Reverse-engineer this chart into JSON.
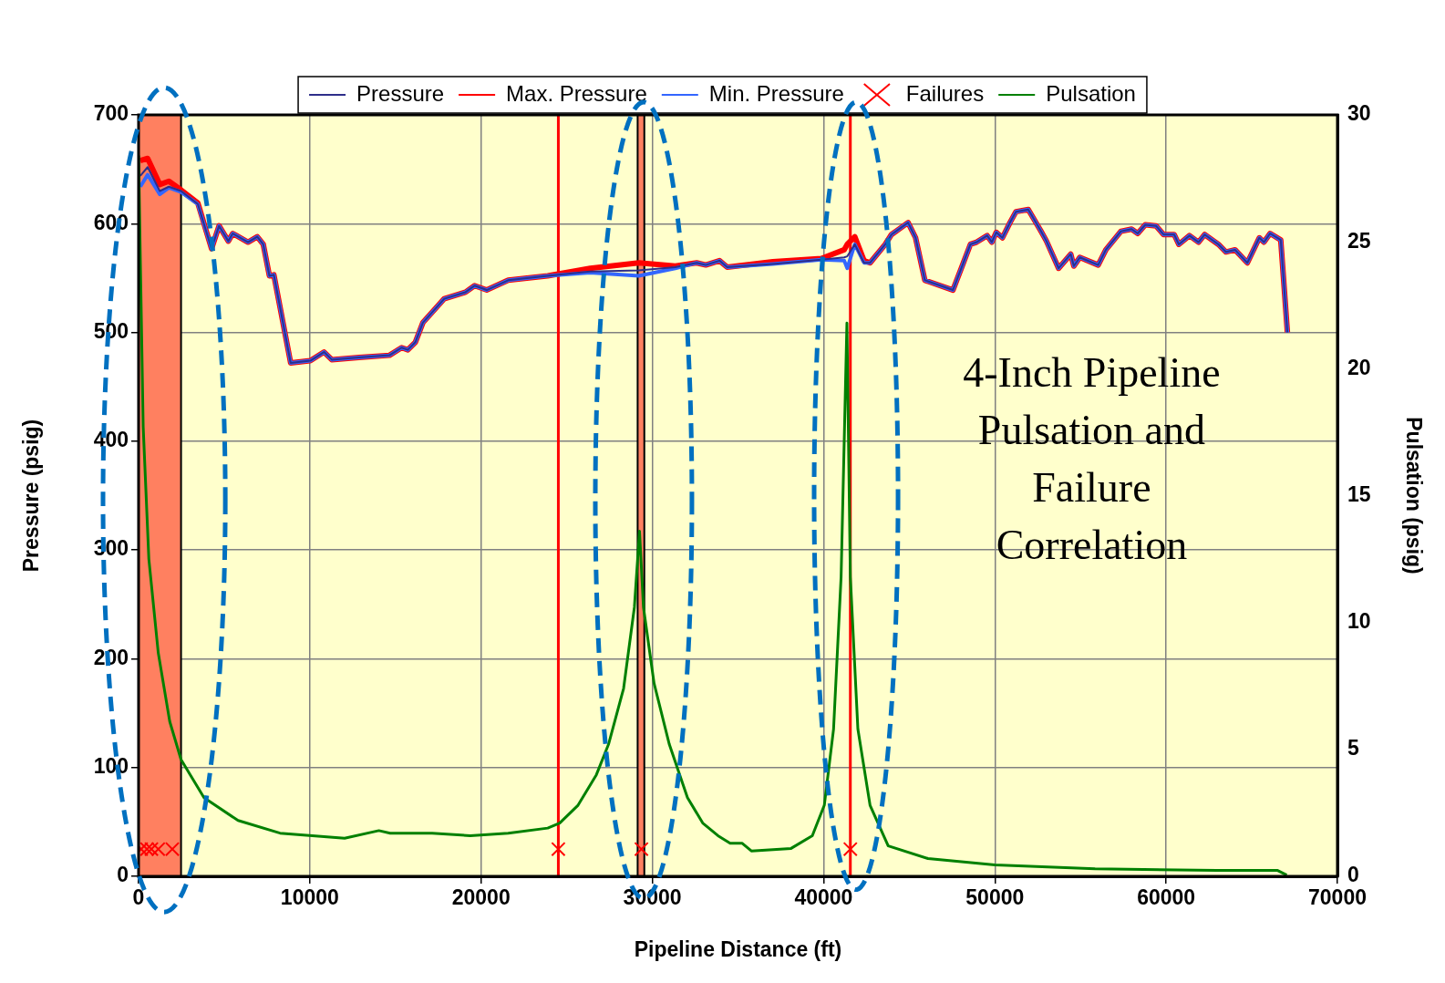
{
  "chart_data": {
    "type": "line",
    "xlabel": "Pipeline Distance (ft)",
    "ylabel": "Pressure (psig)",
    "y2label": "Pulsation (psig)",
    "annotations": [
      "4-Inch Pipeline Pulsation and Failure Correlation"
    ],
    "xlim": [
      0,
      70000
    ],
    "xticks": [
      0,
      10000,
      20000,
      30000,
      40000,
      50000,
      60000,
      70000
    ],
    "ylim": [
      0,
      700
    ],
    "yticks": [
      0,
      100,
      200,
      300,
      400,
      500,
      600,
      700
    ],
    "y2lim": [
      0,
      30
    ],
    "y2ticks": [
      0,
      5,
      10,
      15,
      20,
      25,
      30
    ],
    "grid": true,
    "legend": "top",
    "marker": "none",
    "x": [
      100,
      530,
      1240,
      1770,
      2480,
      3460,
      4260,
      4700,
      5240,
      5500,
      6390,
      6930,
      7280,
      7640,
      7900,
      8880,
      10030,
      10830,
      11280,
      12870,
      14650,
      15360,
      15720,
      16160,
      16600,
      17850,
      19090,
      19620,
      20330,
      21580,
      23890,
      26370,
      29210,
      31340,
      32590,
      33120,
      33920,
      34370,
      37030,
      39870,
      41200,
      41380,
      41820,
      42360,
      42710,
      43600,
      43960,
      44930,
      45370,
      45910,
      47550,
      48040,
      48570,
      48930,
      49550,
      49820,
      50080,
      50440,
      50880,
      51230,
      51950,
      52660,
      53010,
      53720,
      54430,
      54610,
      54960,
      56030,
      56480,
      57360,
      57980,
      58340,
      58780,
      59410,
      59850,
      60470,
      60740,
      61360,
      61890,
      62250,
      63050,
      63490,
      64020,
      64740,
      65440,
      65710,
      66070,
      66690,
      67080
    ],
    "bands": [
      {
        "axis": "x",
        "from": 0,
        "to": 2480,
        "color": "#ff8060"
      },
      {
        "axis": "x",
        "from": 29140,
        "to": 29530,
        "color": "#ff8060"
      }
    ],
    "ref_lines": [
      {
        "axis": "x",
        "value": 24510,
        "color": "#ff0000"
      },
      {
        "axis": "x",
        "value": 41560,
        "color": "#ff0000"
      }
    ],
    "series": [
      {
        "name": "Pressure",
        "color": "#2e2e8a",
        "values": [
          644,
          652,
          630,
          634,
          630,
          618,
          577,
          598,
          584,
          591,
          583,
          588,
          581,
          552,
          553,
          472,
          474,
          482,
          475,
          477,
          479,
          486,
          484,
          491,
          509,
          531,
          537,
          543,
          539,
          548,
          552,
          556,
          557,
          560,
          564,
          562,
          566,
          560,
          563,
          567,
          569,
          570,
          581,
          564,
          564,
          581,
          590,
          601,
          587,
          548,
          539,
          559,
          581,
          583,
          589,
          583,
          592,
          587,
          601,
          611,
          613,
          594,
          584,
          559,
          572,
          561,
          569,
          562,
          576,
          593,
          595,
          591,
          599,
          598,
          590,
          590,
          581,
          589,
          583,
          590,
          581,
          574,
          576,
          564,
          587,
          583,
          591,
          585,
          500
        ]
      },
      {
        "name": "Max. Pressure",
        "color": "#ff0000",
        "values": [
          658,
          660,
          636,
          639,
          631,
          619,
          577,
          598,
          584,
          591,
          583,
          588,
          581,
          552,
          553,
          472,
          474,
          482,
          475,
          477,
          479,
          486,
          484,
          491,
          509,
          531,
          537,
          543,
          539,
          548,
          552,
          559,
          564,
          561,
          564,
          562,
          566,
          560,
          565,
          568,
          576,
          581,
          588,
          566,
          564,
          581,
          590,
          601,
          587,
          548,
          539,
          559,
          581,
          583,
          589,
          583,
          592,
          587,
          601,
          611,
          613,
          594,
          584,
          559,
          572,
          561,
          569,
          562,
          576,
          593,
          595,
          591,
          599,
          598,
          590,
          590,
          581,
          589,
          583,
          590,
          581,
          574,
          576,
          564,
          587,
          583,
          591,
          585,
          500
        ]
      },
      {
        "name": "Min. Pressure",
        "color": "#3366ff",
        "values": [
          634,
          645,
          627,
          633,
          629,
          618,
          577,
          598,
          584,
          591,
          583,
          588,
          581,
          552,
          553,
          472,
          474,
          482,
          475,
          477,
          479,
          486,
          484,
          491,
          509,
          531,
          537,
          543,
          539,
          548,
          552,
          555,
          552,
          559,
          564,
          562,
          566,
          560,
          563,
          567,
          566,
          559,
          581,
          564,
          564,
          581,
          590,
          601,
          587,
          548,
          539,
          559,
          581,
          583,
          589,
          583,
          592,
          587,
          601,
          611,
          613,
          594,
          584,
          559,
          572,
          561,
          569,
          562,
          576,
          593,
          595,
          591,
          599,
          598,
          590,
          590,
          581,
          589,
          583,
          590,
          581,
          574,
          576,
          564,
          587,
          583,
          591,
          585,
          500
        ]
      },
      {
        "name": "Failures",
        "type": "scatter",
        "marker": "cross",
        "color": "#ff0000",
        "x": [
          150,
          490,
          750,
          1150,
          1970,
          24510,
          29360,
          41560
        ],
        "values": [
          25,
          25,
          25,
          25,
          25,
          25,
          25,
          25
        ]
      },
      {
        "name": "Pulsation",
        "color": "#008000",
        "axis": "y2",
        "x": [
          0,
          270,
          600,
          1150,
          1820,
          2480,
          3820,
          5810,
          8260,
          12030,
          14030,
          14690,
          17140,
          19360,
          21580,
          23890,
          24590,
          25660,
          26730,
          27440,
          28320,
          28950,
          29250,
          29480,
          30100,
          30990,
          32050,
          32940,
          33830,
          34540,
          35250,
          35780,
          38100,
          39340,
          40040,
          40580,
          41020,
          41360,
          41560,
          42000,
          42710,
          43770,
          46090,
          50000,
          55850,
          62950,
          66510,
          67040
        ],
        "values": [
          28.4,
          17.7,
          12.5,
          8.8,
          6.1,
          4.6,
          3.1,
          2.2,
          1.7,
          1.5,
          1.8,
          1.7,
          1.7,
          1.6,
          1.7,
          1.9,
          2.1,
          2.8,
          4.0,
          5.2,
          7.4,
          10.6,
          13.6,
          10.6,
          7.6,
          5.2,
          3.1,
          2.1,
          1.6,
          1.3,
          1.3,
          1.0,
          1.1,
          1.6,
          2.8,
          5.8,
          11.8,
          21.8,
          11.8,
          5.8,
          2.8,
          1.2,
          0.7,
          0.45,
          0.3,
          0.23,
          0.23,
          0.05
        ]
      }
    ]
  }
}
